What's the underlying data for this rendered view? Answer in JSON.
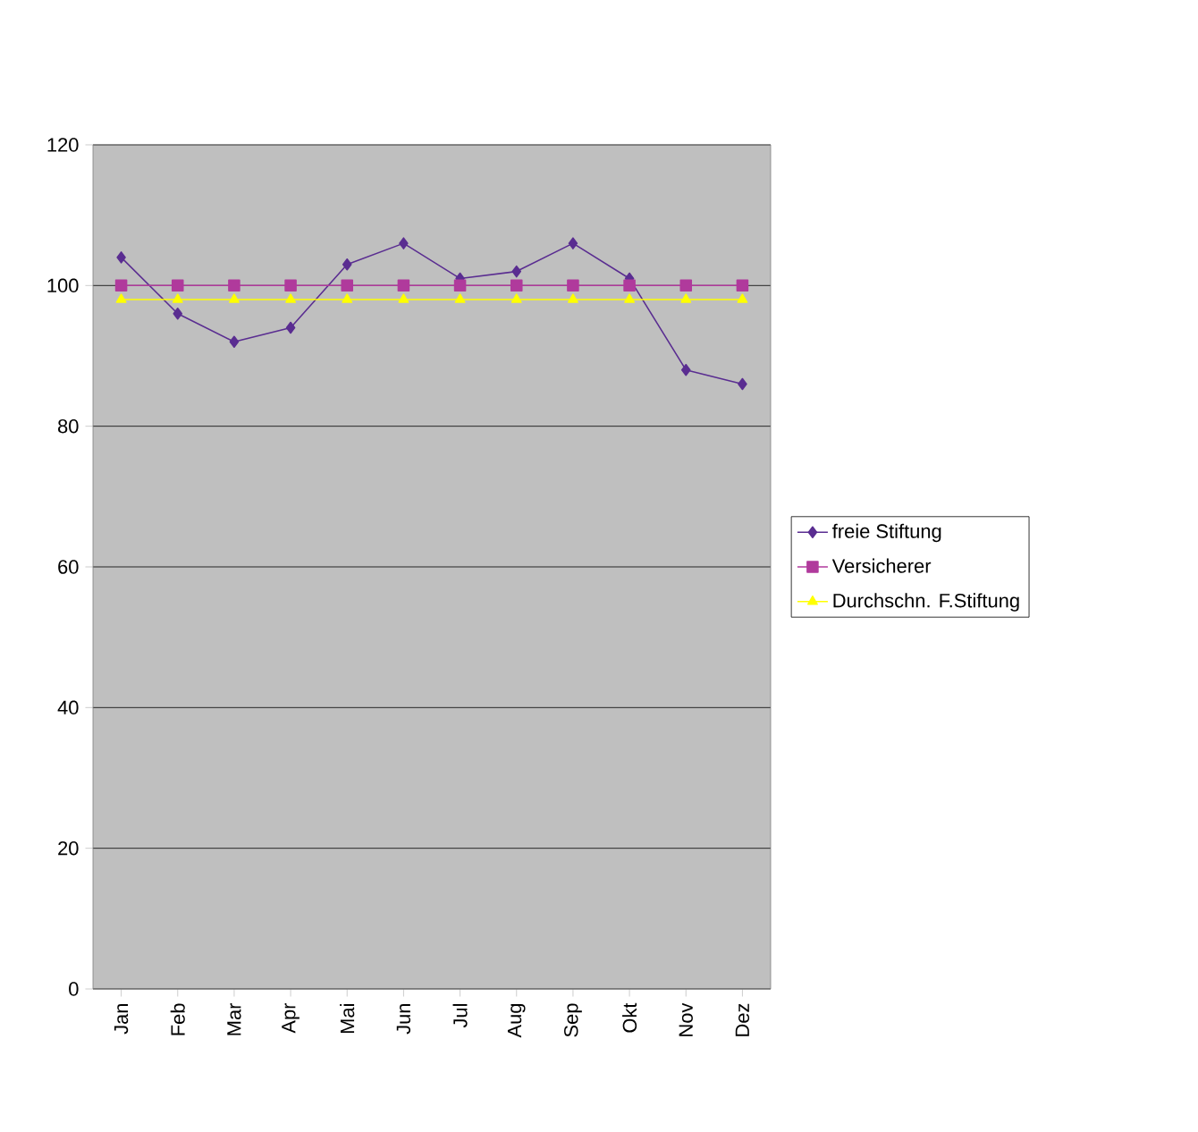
{
  "chart_data": {
    "type": "line",
    "categories": [
      "Jan",
      "Feb",
      "Mar",
      "Apr",
      "Mai",
      "Jun",
      "Jul",
      "Aug",
      "Sep",
      "Okt",
      "Nov",
      "Dez"
    ],
    "series": [
      {
        "name": "freie Stiftung",
        "color": "#5a2d91",
        "marker": "diamond",
        "values": [
          104,
          96,
          92,
          94,
          103,
          106,
          101,
          102,
          106,
          101,
          88,
          86
        ]
      },
      {
        "name": "Versicherer",
        "color": "#b03a9c",
        "marker": "square",
        "values": [
          100,
          100,
          100,
          100,
          100,
          100,
          100,
          100,
          100,
          100,
          100,
          100
        ]
      },
      {
        "name": "Durchschn. F.Stiftung",
        "color": "#ffff00",
        "marker": "triangle",
        "values": [
          98,
          98,
          98,
          98,
          98,
          98,
          98,
          98,
          98,
          98,
          98,
          98
        ]
      }
    ],
    "ylim": [
      0,
      120
    ],
    "yticks": [
      0,
      20,
      40,
      60,
      80,
      100,
      120
    ],
    "grid": "y",
    "legend": "right"
  }
}
